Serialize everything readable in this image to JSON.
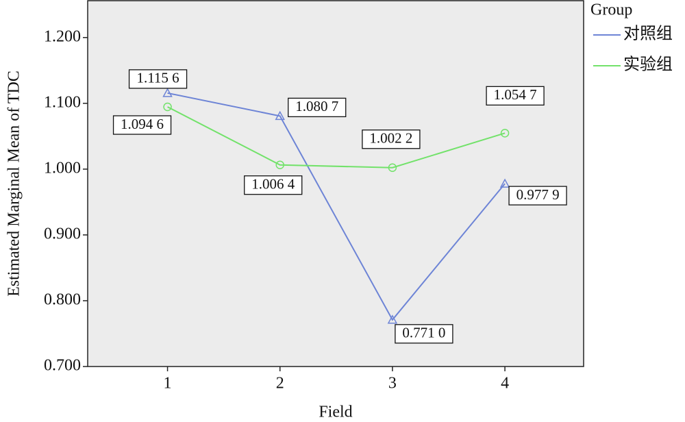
{
  "chart_data": {
    "type": "line",
    "x_label": "Field",
    "y_label": "Estimated Marginal Mean of TDC",
    "legend_title": "Group",
    "legend": "right",
    "x": [
      1,
      2,
      3,
      4
    ],
    "xlim": [
      0.29,
      4.7
    ],
    "xticks": [
      1,
      2,
      3,
      4
    ],
    "ylim": [
      0.7,
      1.256
    ],
    "yticks": [
      {
        "value": 0.7,
        "label": "0.700"
      },
      {
        "value": 0.8,
        "label": "0.800"
      },
      {
        "value": 0.9,
        "label": "0.900"
      },
      {
        "value": 1.0,
        "label": "1.000"
      },
      {
        "value": 1.1,
        "label": "1.100"
      },
      {
        "value": 1.2,
        "label": "1.200"
      }
    ],
    "series": [
      {
        "name": "对照组",
        "color": "#6d84d6",
        "marker": "triangle",
        "values": [
          1.1156,
          1.0807,
          0.771,
          0.9779
        ],
        "value_labels": [
          "1.115 6",
          "1.080 7",
          "0.771 0",
          "0.977 9"
        ]
      },
      {
        "name": "实验组",
        "color": "#72e26a",
        "marker": "circle",
        "values": [
          1.0946,
          1.0064,
          1.0022,
          1.0547
        ],
        "value_labels": [
          "1.094 6",
          "1.006 4",
          "1.002 2",
          "1.054 7"
        ]
      }
    ]
  }
}
